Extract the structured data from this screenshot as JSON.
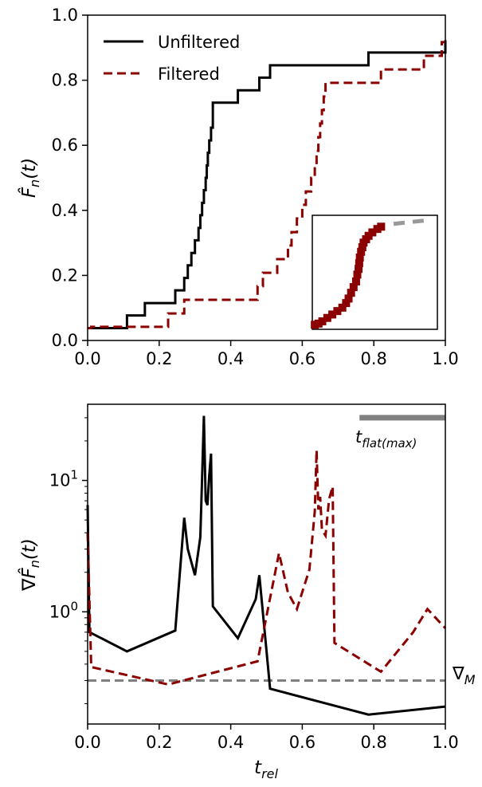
{
  "chart_data": [
    {
      "type": "line",
      "xlabel": "",
      "ylabel": "F̂n(t)",
      "ylabel_parts": {
        "base": "F̂",
        "sub": "n",
        "arg": "(t)"
      },
      "xlim": [
        0.0,
        1.0
      ],
      "ylim": [
        0.0,
        1.0
      ],
      "x_ticks": [
        "0.0",
        "0.2",
        "0.4",
        "0.6",
        "0.8",
        "1.0"
      ],
      "y_ticks": [
        "0.0",
        "0.2",
        "0.4",
        "0.6",
        "0.8",
        "1.0"
      ],
      "grid": false,
      "legend_position": "top-left",
      "series": [
        {
          "name": "Unfiltered",
          "color": "#000000",
          "style": "solid",
          "step": true,
          "x": [
            0.0,
            0.11,
            0.16,
            0.245,
            0.27,
            0.28,
            0.29,
            0.3,
            0.31,
            0.315,
            0.32,
            0.325,
            0.33,
            0.333,
            0.336,
            0.34,
            0.345,
            0.35,
            0.35,
            0.42,
            0.48,
            0.51,
            0.785,
            1.0
          ],
          "y": [
            0.038,
            0.077,
            0.115,
            0.154,
            0.192,
            0.231,
            0.269,
            0.308,
            0.346,
            0.385,
            0.423,
            0.462,
            0.5,
            0.538,
            0.577,
            0.615,
            0.654,
            0.692,
            0.731,
            0.769,
            0.808,
            0.846,
            0.885,
            0.923
          ]
        },
        {
          "name": "Filtered",
          "color": "#8b0000",
          "style": "dashed",
          "step": true,
          "x": [
            0.0,
            0.01,
            0.225,
            0.27,
            0.475,
            0.49,
            0.53,
            0.56,
            0.57,
            0.585,
            0.6,
            0.61,
            0.625,
            0.635,
            0.64,
            0.645,
            0.65,
            0.655,
            0.66,
            0.665,
            0.675,
            0.68,
            0.685,
            0.69,
            0.82,
            0.94,
            0.99
          ],
          "y": [
            0.038,
            0.042,
            0.083,
            0.125,
            0.167,
            0.208,
            0.25,
            0.292,
            0.333,
            0.375,
            0.417,
            0.458,
            0.5,
            0.542,
            0.583,
            0.625,
            0.667,
            0.708,
            0.75,
            0.792,
            0.792,
            0.792,
            0.792,
            0.792,
            0.833,
            0.875,
            0.917
          ]
        }
      ],
      "inset": {
        "color": "#8b0000",
        "x": [
          0.02,
          0.05,
          0.08,
          0.12,
          0.16,
          0.2,
          0.24,
          0.27,
          0.29,
          0.31,
          0.33,
          0.35,
          0.36,
          0.37,
          0.375,
          0.38,
          0.39,
          0.4,
          0.41,
          0.43,
          0.45,
          0.48,
          0.52,
          0.55,
          0.58,
          0.62,
          0.65,
          0.68,
          0.74,
          0.8,
          0.85,
          0.9,
          0.95
        ],
        "y": [
          0.04,
          0.05,
          0.07,
          0.1,
          0.13,
          0.16,
          0.19,
          0.23,
          0.27,
          0.32,
          0.37,
          0.42,
          0.48,
          0.53,
          0.58,
          0.63,
          0.68,
          0.72,
          0.76,
          0.79,
          0.82,
          0.85,
          0.88,
          0.9,
          0.91,
          0.92,
          0.925,
          0.93,
          0.935,
          0.94,
          0.945,
          0.95,
          0.96
        ],
        "markers_until": 24,
        "dash_from": 26
      }
    },
    {
      "type": "line",
      "xlabel": "t_rel",
      "xlabel_parts": {
        "base": "t",
        "sub": "rel"
      },
      "ylabel": "∇F̂n(t)",
      "ylabel_parts": {
        "base": "∇F̂",
        "sub": "n",
        "arg": "(t)"
      },
      "xlim": [
        0.0,
        1.0
      ],
      "ylim": [
        0.14,
        38
      ],
      "yscale": "log",
      "x_ticks": [
        "0.0",
        "0.2",
        "0.4",
        "0.6",
        "0.8",
        "1.0"
      ],
      "y_ticks": [
        {
          "value": 1,
          "base": "10",
          "exp": "0"
        },
        {
          "value": 10,
          "base": "10",
          "exp": "1"
        }
      ],
      "grid": false,
      "series": [
        {
          "name": "",
          "color": "#000000",
          "style": "solid",
          "x": [
            0.0,
            0.005,
            0.11,
            0.245,
            0.27,
            0.28,
            0.3,
            0.315,
            0.32,
            0.325,
            0.33,
            0.335,
            0.34,
            0.345,
            0.35,
            0.42,
            0.47,
            0.48,
            0.51,
            0.785,
            1.0
          ],
          "y": [
            6.5,
            0.7,
            0.5,
            0.72,
            5.2,
            3.0,
            1.9,
            3.7,
            10.5,
            31.0,
            7.0,
            6.5,
            11.0,
            16.0,
            1.1,
            0.63,
            1.25,
            1.9,
            0.26,
            0.165,
            0.19
          ]
        },
        {
          "name": "",
          "color": "#8b0000",
          "style": "dashed",
          "x": [
            0.0,
            0.01,
            0.225,
            0.475,
            0.535,
            0.56,
            0.585,
            0.62,
            0.635,
            0.64,
            0.645,
            0.65,
            0.655,
            0.665,
            0.675,
            0.685,
            0.69,
            0.82,
            0.91,
            0.95,
            1.0
          ],
          "y": [
            4.0,
            0.38,
            0.28,
            0.42,
            2.8,
            1.4,
            1.05,
            2.1,
            5.8,
            17.0,
            6.0,
            7.5,
            4.2,
            3.8,
            7.2,
            9.0,
            0.58,
            0.35,
            0.7,
            1.05,
            0.75
          ]
        }
      ],
      "reference_lines": [
        {
          "label": "∇M",
          "label_parts": {
            "base": "∇",
            "sub": "M"
          },
          "y": 0.3,
          "color": "#808080",
          "style": "dashed"
        }
      ],
      "flat_bar": {
        "label": "tflat(max)",
        "label_parts": {
          "base": "t",
          "sub": "flat(max)"
        },
        "x_start": 0.76,
        "x_end": 1.0,
        "y": 30,
        "color": "#808080"
      }
    }
  ]
}
